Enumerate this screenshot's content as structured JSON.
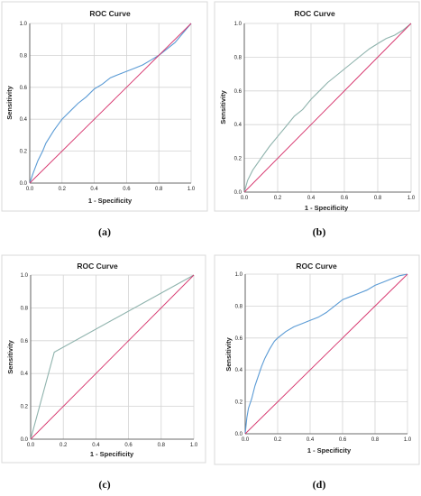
{
  "colors": {
    "roc_blue": "#5b9bd5",
    "roc_grey": "#8fb3ad",
    "diagonal": "#d6336c",
    "grid": "#d3d3d3"
  },
  "chart_data": [
    {
      "caption": "(a)",
      "type": "line",
      "title": "ROC Curve",
      "xlabel": "1 - Specificity",
      "ylabel": "Sensitivity",
      "xlim": [
        0,
        1
      ],
      "ylim": [
        0,
        1
      ],
      "xticks": [
        "0.0",
        "0.2",
        "0.4",
        "0.6",
        "0.8",
        "1.0"
      ],
      "yticks": [
        "0.0",
        "0.2",
        "0.4",
        "0.6",
        "0.8",
        "1.0"
      ],
      "grid": true,
      "curve_color": "#5b9bd5",
      "series": [
        {
          "x": [
            0,
            0.02,
            0.05,
            0.08,
            0.1,
            0.15,
            0.2,
            0.25,
            0.3,
            0.35,
            0.4,
            0.45,
            0.5,
            0.55,
            0.6,
            0.65,
            0.7,
            0.75,
            0.8,
            0.85,
            0.9,
            0.95,
            1.0
          ],
          "y": [
            0,
            0.06,
            0.14,
            0.2,
            0.25,
            0.33,
            0.4,
            0.45,
            0.5,
            0.54,
            0.59,
            0.62,
            0.66,
            0.68,
            0.7,
            0.72,
            0.74,
            0.77,
            0.8,
            0.84,
            0.88,
            0.94,
            1.0
          ]
        },
        {
          "x": [
            0,
            1
          ],
          "y": [
            0,
            1
          ]
        }
      ]
    },
    {
      "caption": "(b)",
      "type": "line",
      "title": "ROC Curve",
      "xlabel": "1 - Specificity",
      "ylabel": "Sensitivity",
      "xlim": [
        0,
        1
      ],
      "ylim": [
        0,
        1
      ],
      "xticks": [
        "0.0",
        "0.2",
        "0.4",
        "0.6",
        "0.8",
        "1.0"
      ],
      "yticks": [
        "0.0",
        "0.2",
        "0.4",
        "0.6",
        "0.8",
        "1.0"
      ],
      "grid": true,
      "curve_color": "#8fb3ad",
      "series": [
        {
          "x": [
            0,
            0.02,
            0.05,
            0.1,
            0.15,
            0.2,
            0.25,
            0.3,
            0.35,
            0.4,
            0.45,
            0.5,
            0.55,
            0.6,
            0.65,
            0.7,
            0.75,
            0.8,
            0.85,
            0.9,
            0.95,
            1.0
          ],
          "y": [
            0,
            0.07,
            0.13,
            0.2,
            0.27,
            0.33,
            0.39,
            0.45,
            0.49,
            0.55,
            0.6,
            0.65,
            0.69,
            0.73,
            0.77,
            0.81,
            0.85,
            0.88,
            0.91,
            0.93,
            0.96,
            1.0
          ]
        },
        {
          "x": [
            0,
            1
          ],
          "y": [
            0,
            1
          ]
        }
      ]
    },
    {
      "caption": "(c)",
      "type": "line",
      "title": "ROC Curve",
      "xlabel": "1 - Specificity",
      "ylabel": "Sensitivity",
      "xlim": [
        0,
        1
      ],
      "ylim": [
        0,
        1
      ],
      "xticks": [
        "0.0",
        "0.2",
        "0.4",
        "0.6",
        "0.8",
        "1.0"
      ],
      "yticks": [
        "0.0",
        "0.2",
        "0.4",
        "0.6",
        "0.8",
        "1.0"
      ],
      "grid": true,
      "curve_color": "#8fb3ad",
      "series": [
        {
          "x": [
            0,
            0.145,
            1.0
          ],
          "y": [
            0,
            0.53,
            1.0
          ]
        },
        {
          "x": [
            0,
            1
          ],
          "y": [
            0,
            1
          ]
        }
      ]
    },
    {
      "caption": "(d)",
      "type": "line",
      "title": "ROC Curve",
      "xlabel": "1 - Specificity",
      "ylabel": "Sensitivity",
      "xlim": [
        0,
        1
      ],
      "ylim": [
        0,
        1
      ],
      "xticks": [
        "0.0",
        "0.2",
        "0.4",
        "0.6",
        "0.8",
        "1.0"
      ],
      "yticks": [
        "0.0",
        "0.2",
        "0.4",
        "0.6",
        "0.8",
        "1.0"
      ],
      "grid": true,
      "curve_color": "#5b9bd5",
      "series": [
        {
          "x": [
            0,
            0.01,
            0.02,
            0.04,
            0.06,
            0.08,
            0.1,
            0.12,
            0.15,
            0.18,
            0.2,
            0.25,
            0.3,
            0.35,
            0.4,
            0.45,
            0.5,
            0.55,
            0.6,
            0.65,
            0.7,
            0.75,
            0.8,
            0.85,
            0.9,
            0.95,
            1.0
          ],
          "y": [
            0,
            0.1,
            0.16,
            0.22,
            0.3,
            0.36,
            0.42,
            0.47,
            0.53,
            0.58,
            0.6,
            0.64,
            0.67,
            0.69,
            0.71,
            0.73,
            0.76,
            0.8,
            0.84,
            0.86,
            0.88,
            0.9,
            0.93,
            0.95,
            0.97,
            0.99,
            1.0
          ]
        },
        {
          "x": [
            0,
            1
          ],
          "y": [
            0,
            1
          ]
        }
      ]
    }
  ]
}
